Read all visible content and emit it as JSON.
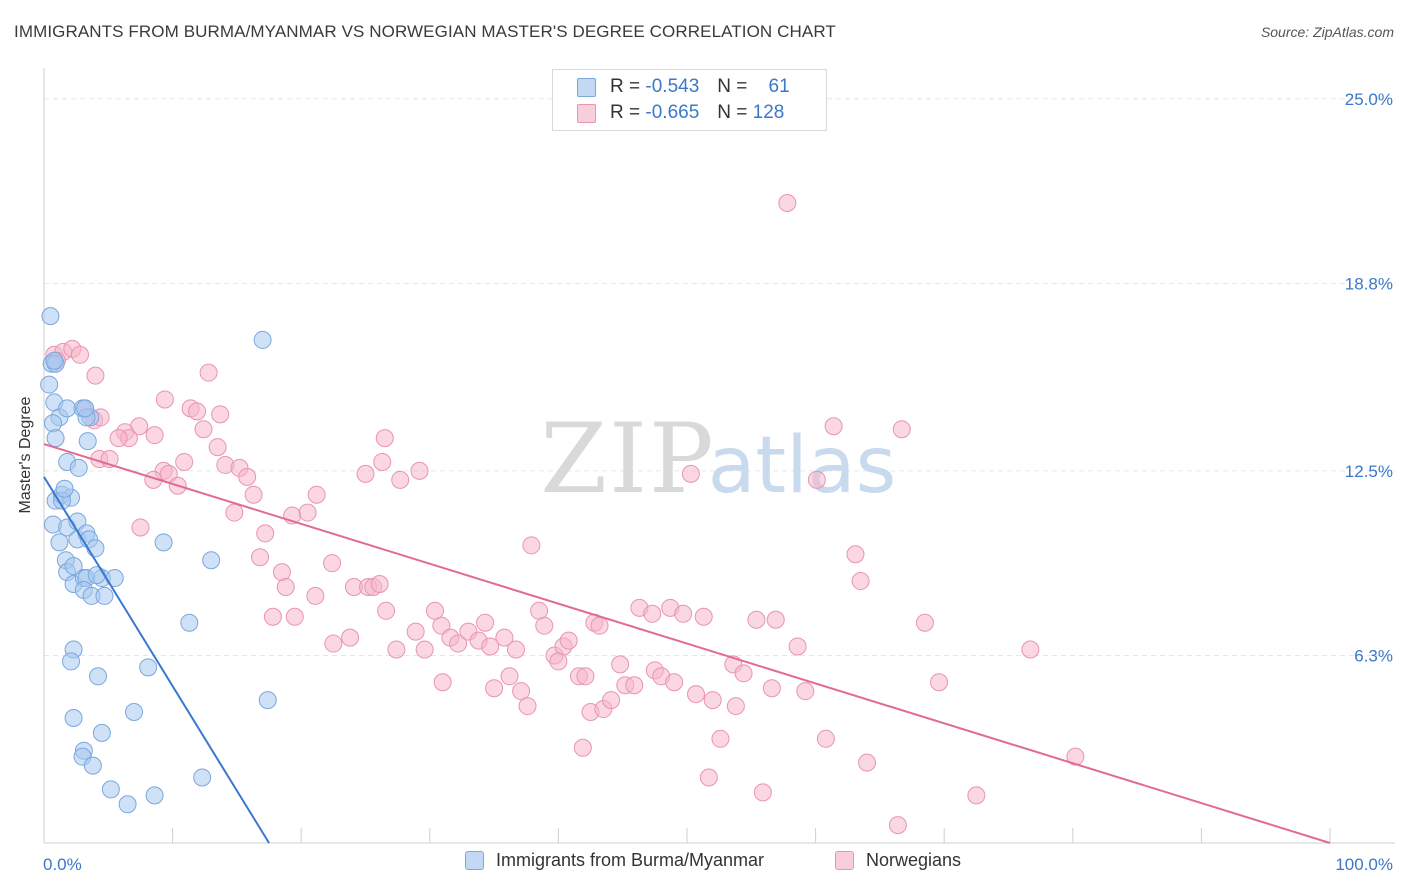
{
  "title": "IMMIGRANTS FROM BURMA/MYANMAR VS NORWEGIAN MASTER'S DEGREE CORRELATION CHART",
  "source": "Source: ZipAtlas.com",
  "watermark": {
    "zip": "ZIP",
    "atlas": "atlas"
  },
  "legend": {
    "rows": [
      {
        "r_label": "R =",
        "r_value": "-0.543",
        "n_label": "N =",
        "n_value": "61",
        "color": "#a8c8f0"
      },
      {
        "r_label": "R =",
        "r_value": "-0.665",
        "n_label": "N =",
        "n_value": "128",
        "color": "#f5b7cb"
      }
    ]
  },
  "bottom_legend": {
    "series1": "Immigrants from Burma/Myanmar",
    "series2": "Norwegians"
  },
  "chart_data": {
    "type": "scatter",
    "title": "IMMIGRANTS FROM BURMA/MYANMAR VS NORWEGIAN MASTER'S DEGREE CORRELATION CHART",
    "xlabel": "",
    "ylabel": "Master's Degree",
    "xlim": [
      0,
      100
    ],
    "ylim": [
      0,
      25.9
    ],
    "x_tick_labels": [
      "0.0%",
      "100.0%"
    ],
    "y_ticks": [
      6.3,
      12.5,
      18.8,
      25.0
    ],
    "y_tick_labels": [
      "6.3%",
      "12.5%",
      "18.8%",
      "25.0%"
    ],
    "grid": true,
    "series": [
      {
        "name": "Immigrants from Burma/Myanmar",
        "color": "#a8c8f0",
        "stroke": "#7aa7dd",
        "trend": {
          "x": [
            0,
            17.5
          ],
          "y": [
            12.3,
            0
          ],
          "color": "#3a78d0"
        },
        "points": [
          [
            0.6,
            16.1
          ],
          [
            0.9,
            16.1
          ],
          [
            0.5,
            17.7
          ],
          [
            0.8,
            16.2
          ],
          [
            0.4,
            15.4
          ],
          [
            0.8,
            14.8
          ],
          [
            1.2,
            14.3
          ],
          [
            0.7,
            14.1
          ],
          [
            0.9,
            13.6
          ],
          [
            1.8,
            14.6
          ],
          [
            3.0,
            14.6
          ],
          [
            3.6,
            14.3
          ],
          [
            3.4,
            13.5
          ],
          [
            1.8,
            12.8
          ],
          [
            2.7,
            12.6
          ],
          [
            0.9,
            11.5
          ],
          [
            1.4,
            11.7
          ],
          [
            0.7,
            10.7
          ],
          [
            1.8,
            10.6
          ],
          [
            1.2,
            10.1
          ],
          [
            2.6,
            10.8
          ],
          [
            2.6,
            10.2
          ],
          [
            3.3,
            10.4
          ],
          [
            3.5,
            10.2
          ],
          [
            1.7,
            9.5
          ],
          [
            4.0,
            9.9
          ],
          [
            1.8,
            9.1
          ],
          [
            2.3,
            9.3
          ],
          [
            2.3,
            8.7
          ],
          [
            3.1,
            8.9
          ],
          [
            3.3,
            8.9
          ],
          [
            4.5,
            8.9
          ],
          [
            5.5,
            8.9
          ],
          [
            3.1,
            8.5
          ],
          [
            3.7,
            8.3
          ],
          [
            4.7,
            8.3
          ],
          [
            9.3,
            10.1
          ],
          [
            13.0,
            9.5
          ],
          [
            11.3,
            7.4
          ],
          [
            17.0,
            16.9
          ],
          [
            2.3,
            6.5
          ],
          [
            2.1,
            6.1
          ],
          [
            4.2,
            5.6
          ],
          [
            8.1,
            5.9
          ],
          [
            7.0,
            4.4
          ],
          [
            2.3,
            4.2
          ],
          [
            4.5,
            3.7
          ],
          [
            3.1,
            3.1
          ],
          [
            3.0,
            2.9
          ],
          [
            3.8,
            2.6
          ],
          [
            5.2,
            1.8
          ],
          [
            6.5,
            1.3
          ],
          [
            8.6,
            1.6
          ],
          [
            12.3,
            2.2
          ],
          [
            17.4,
            4.8
          ],
          [
            3.3,
            14.3
          ],
          [
            2.1,
            11.6
          ],
          [
            1.4,
            11.5
          ],
          [
            4.1,
            9.0
          ],
          [
            1.6,
            11.9
          ],
          [
            3.2,
            14.6
          ]
        ]
      },
      {
        "name": "Norwegians",
        "color": "#f5b7cb",
        "stroke": "#e895b0",
        "trend": {
          "x": [
            0,
            100
          ],
          "y": [
            13.4,
            0
          ],
          "color": "#e26a93"
        },
        "points": [
          [
            0.8,
            16.4
          ],
          [
            1.5,
            16.5
          ],
          [
            2.2,
            16.6
          ],
          [
            2.8,
            16.4
          ],
          [
            1.0,
            16.2
          ],
          [
            4.0,
            15.7
          ],
          [
            12.8,
            15.8
          ],
          [
            9.4,
            14.9
          ],
          [
            11.4,
            14.6
          ],
          [
            11.9,
            14.5
          ],
          [
            13.7,
            14.4
          ],
          [
            3.2,
            14.6
          ],
          [
            3.9,
            14.2
          ],
          [
            4.4,
            14.3
          ],
          [
            7.4,
            14.0
          ],
          [
            6.3,
            13.8
          ],
          [
            6.6,
            13.6
          ],
          [
            8.6,
            13.7
          ],
          [
            12.4,
            13.9
          ],
          [
            5.8,
            13.6
          ],
          [
            13.5,
            13.3
          ],
          [
            4.3,
            12.9
          ],
          [
            5.1,
            12.9
          ],
          [
            10.9,
            12.8
          ],
          [
            9.3,
            12.5
          ],
          [
            9.7,
            12.4
          ],
          [
            14.1,
            12.7
          ],
          [
            15.2,
            12.6
          ],
          [
            15.8,
            12.3
          ],
          [
            8.5,
            12.2
          ],
          [
            10.4,
            12.0
          ],
          [
            16.3,
            11.7
          ],
          [
            14.8,
            11.1
          ],
          [
            19.3,
            11.0
          ],
          [
            20.5,
            11.1
          ],
          [
            21.2,
            11.7
          ],
          [
            7.5,
            10.6
          ],
          [
            17.2,
            10.4
          ],
          [
            16.8,
            9.6
          ],
          [
            18.5,
            9.1
          ],
          [
            22.4,
            9.4
          ],
          [
            18.8,
            8.6
          ],
          [
            21.1,
            8.3
          ],
          [
            24.1,
            8.6
          ],
          [
            25.2,
            8.6
          ],
          [
            25.6,
            8.6
          ],
          [
            26.1,
            8.7
          ],
          [
            26.6,
            7.8
          ],
          [
            28.9,
            7.1
          ],
          [
            30.4,
            7.8
          ],
          [
            17.8,
            7.6
          ],
          [
            19.5,
            7.6
          ],
          [
            25.0,
            12.4
          ],
          [
            26.3,
            12.8
          ],
          [
            26.5,
            13.6
          ],
          [
            27.7,
            12.2
          ],
          [
            29.2,
            12.5
          ],
          [
            22.5,
            6.7
          ],
          [
            23.8,
            6.9
          ],
          [
            27.4,
            6.5
          ],
          [
            29.6,
            6.5
          ],
          [
            30.9,
            7.3
          ],
          [
            31.6,
            6.9
          ],
          [
            32.2,
            6.7
          ],
          [
            33.0,
            7.1
          ],
          [
            33.8,
            6.8
          ],
          [
            34.3,
            7.4
          ],
          [
            34.7,
            6.6
          ],
          [
            35.8,
            6.9
          ],
          [
            31.0,
            5.4
          ],
          [
            35.0,
            5.2
          ],
          [
            36.2,
            5.6
          ],
          [
            36.7,
            6.5
          ],
          [
            37.1,
            5.1
          ],
          [
            37.6,
            4.6
          ],
          [
            38.5,
            7.8
          ],
          [
            37.9,
            10.0
          ],
          [
            38.9,
            7.3
          ],
          [
            39.7,
            6.3
          ],
          [
            40.4,
            6.6
          ],
          [
            40.0,
            6.1
          ],
          [
            40.8,
            6.8
          ],
          [
            41.6,
            5.6
          ],
          [
            42.1,
            5.6
          ],
          [
            41.9,
            3.2
          ],
          [
            42.8,
            7.4
          ],
          [
            43.2,
            7.3
          ],
          [
            42.5,
            4.4
          ],
          [
            43.5,
            4.5
          ],
          [
            44.1,
            4.8
          ],
          [
            44.8,
            6.0
          ],
          [
            45.2,
            5.3
          ],
          [
            45.9,
            5.3
          ],
          [
            46.3,
            7.9
          ],
          [
            47.3,
            7.7
          ],
          [
            47.5,
            5.8
          ],
          [
            48.0,
            5.6
          ],
          [
            48.7,
            7.9
          ],
          [
            49.0,
            5.4
          ],
          [
            49.7,
            7.7
          ],
          [
            50.3,
            12.4
          ],
          [
            50.7,
            5.0
          ],
          [
            51.3,
            7.6
          ],
          [
            51.7,
            2.2
          ],
          [
            52.0,
            4.8
          ],
          [
            52.6,
            3.5
          ],
          [
            53.6,
            6.0
          ],
          [
            53.8,
            4.6
          ],
          [
            54.4,
            5.7
          ],
          [
            55.4,
            7.5
          ],
          [
            55.9,
            1.7
          ],
          [
            56.6,
            5.2
          ],
          [
            56.9,
            7.5
          ],
          [
            58.6,
            6.6
          ],
          [
            59.2,
            5.1
          ],
          [
            60.8,
            3.5
          ],
          [
            61.4,
            14.0
          ],
          [
            60.1,
            12.2
          ],
          [
            63.1,
            9.7
          ],
          [
            63.5,
            8.8
          ],
          [
            64.0,
            2.7
          ],
          [
            66.4,
            0.6
          ],
          [
            66.7,
            13.9
          ],
          [
            68.5,
            7.4
          ],
          [
            69.6,
            5.4
          ],
          [
            72.5,
            1.6
          ],
          [
            76.7,
            6.5
          ],
          [
            80.2,
            2.9
          ],
          [
            57.8,
            21.5
          ]
        ]
      }
    ]
  }
}
